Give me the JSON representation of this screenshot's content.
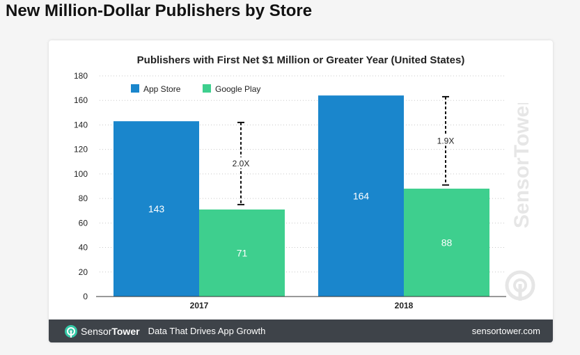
{
  "page": {
    "title": "New Million-Dollar Publishers by Store"
  },
  "footer": {
    "brand_part1": "Sensor",
    "brand_part2": "Tower",
    "tagline": "Data That Drives App Growth",
    "url": "sensortower.com"
  },
  "watermark": {
    "text": "SensorTower"
  },
  "colors": {
    "app_store": "#1a86cc",
    "google_play": "#3ecf8e",
    "footer_bg": "#3e4349",
    "logo_accent": "#34c8a6"
  },
  "chart_data": {
    "type": "bar",
    "title": "Publishers with First Net $1 Million or Greater Year (United States)",
    "categories": [
      "2017",
      "2018"
    ],
    "series": [
      {
        "name": "App Store",
        "values": [
          143,
          164
        ],
        "color": "#1a86cc"
      },
      {
        "name": "Google Play",
        "values": [
          71,
          88
        ],
        "color": "#3ecf8e"
      }
    ],
    "ylim": [
      0,
      180
    ],
    "yticks": [
      0,
      20,
      40,
      60,
      80,
      100,
      120,
      140,
      160,
      180
    ],
    "grid": true,
    "legend_position": "top-left",
    "annotations": [
      {
        "category": "2017",
        "label": "2.0X",
        "from": 75,
        "to": 142
      },
      {
        "category": "2018",
        "label": "1.9X",
        "from": 91,
        "to": 163
      }
    ]
  }
}
